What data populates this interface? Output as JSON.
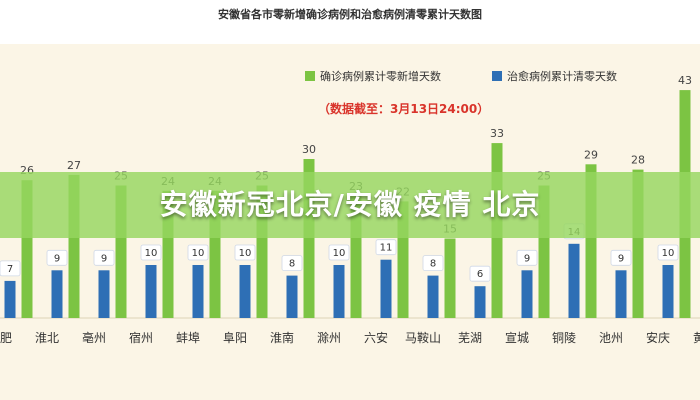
{
  "banner": {
    "headline": "安徽新冠北京/安徽 疫情 北京"
  },
  "colors": {
    "green": "#7cc443",
    "blue": "#2e6fb5",
    "date_red": "#d9342b",
    "panel_bg": "#fbf5e6"
  },
  "chart_data": {
    "type": "bar",
    "title": "安徽省各市零新增确诊病例和治愈病例清零累计天数图",
    "note": "（数据截至：3月13日24:00）",
    "categories": [
      "合肥",
      "淮北",
      "亳州",
      "宿州",
      "蚌埠",
      "阜阳",
      "淮南",
      "滁州",
      "六安",
      "马鞍山",
      "芜湖",
      "宣城",
      "铜陵",
      "池州",
      "安庆",
      "黄山"
    ],
    "series": [
      {
        "name": "确诊病例累计零新增天数",
        "color": "#7cc443",
        "values": [
          null,
          26,
          27,
          25,
          24,
          24,
          25,
          30,
          23,
          22,
          15,
          33,
          25,
          29,
          28,
          43
        ]
      },
      {
        "name": "治愈病例累计清零天数",
        "color": "#2e6fb5",
        "values": [
          7,
          9,
          9,
          10,
          10,
          10,
          8,
          10,
          11,
          8,
          6,
          9,
          14,
          9,
          10,
          null
        ]
      }
    ],
    "ylim": [
      0,
      45
    ],
    "legend_position": "top-right",
    "grid": false
  }
}
